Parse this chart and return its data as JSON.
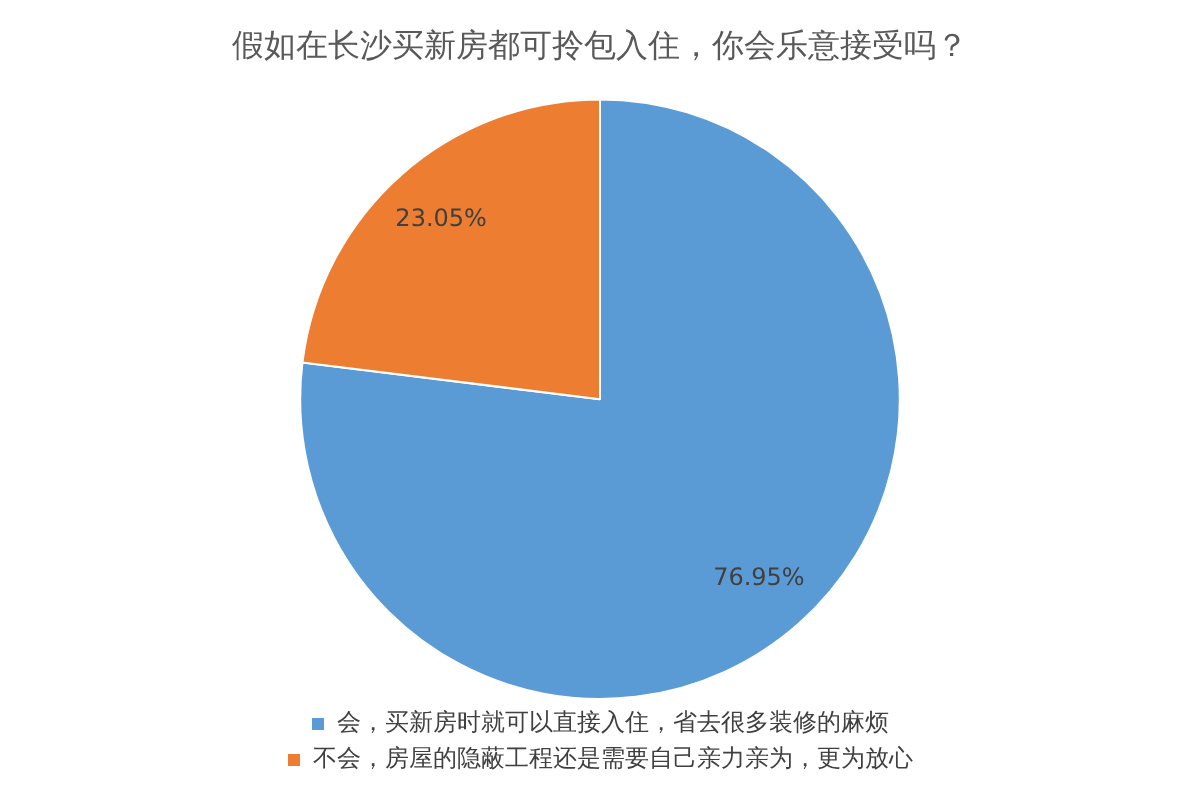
{
  "chart_data": {
    "type": "pie",
    "title": "假如在长沙买新房都可拎包入住，你会乐意接受吗？",
    "categories": [
      "会，买新房时就可以直接入住，省去很多装修的麻烦",
      "不会，房屋的隐蔽工程还是需要自己亲力亲为，更为放心"
    ],
    "values": [
      76.95,
      23.05
    ],
    "colors": [
      "#5b9bd5",
      "#ed7d31"
    ],
    "value_labels": [
      "76.95%",
      "23.05%"
    ],
    "legend": "bottom"
  }
}
